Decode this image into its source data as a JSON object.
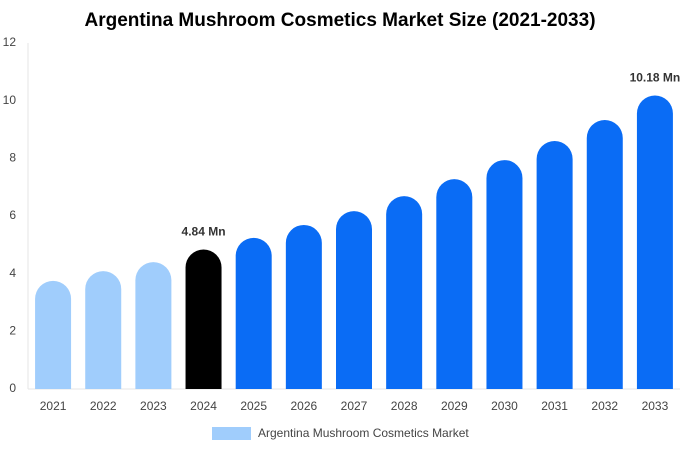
{
  "chart_data": {
    "type": "bar",
    "title": "Argentina Mushroom Cosmetics Market Size (2021-2033)",
    "categories": [
      "2021",
      "2022",
      "2023",
      "2024",
      "2025",
      "2026",
      "2027",
      "2028",
      "2029",
      "2030",
      "2031",
      "2032",
      "2033"
    ],
    "series": [
      {
        "name": "Argentina Mushroom Cosmetics Market",
        "color": "#a0cdfc",
        "colors": [
          "#a0cdfc",
          "#a0cdfc",
          "#a0cdfc",
          "#000000",
          "#0a6cf5",
          "#0a6cf5",
          "#0a6cf5",
          "#0a6cf5",
          "#0a6cf5",
          "#0a6cf5",
          "#0a6cf5",
          "#0a6cf5",
          "#0a6cf5"
        ],
        "values": [
          3.75,
          4.09,
          4.4,
          4.84,
          5.24,
          5.69,
          6.17,
          6.69,
          7.28,
          7.94,
          8.6,
          9.33,
          10.18
        ],
        "value_labels": [
          null,
          null,
          null,
          "4.84 Mn",
          null,
          null,
          null,
          null,
          null,
          null,
          null,
          null,
          "10.18 Mn"
        ]
      }
    ],
    "ylim": [
      0,
      12
    ],
    "yticks": [
      0,
      2,
      4,
      6,
      8,
      10,
      12
    ],
    "grid": false
  }
}
